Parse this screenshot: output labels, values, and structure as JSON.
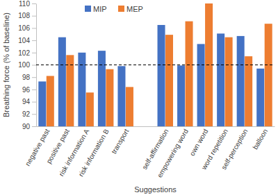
{
  "chart_data": {
    "type": "bar",
    "x_label": "Suggestions",
    "y_label": "Breathing force (% of baseline)",
    "categories": [
      "negative past",
      "positive past",
      "risk information A",
      "risk information B",
      "transport",
      null,
      "self-affirmation",
      "empowering word",
      "own word",
      "word repetition",
      "self-perception",
      "balloon"
    ],
    "series": [
      {
        "name": "MIP",
        "color": "#4472c4",
        "values": [
          97.3,
          104.5,
          102.0,
          102.3,
          99.8,
          null,
          106.5,
          99.9,
          103.4,
          105.1,
          104.7,
          99.4
        ]
      },
      {
        "name": "MEP",
        "color": "#ed7d31",
        "values": [
          98.2,
          101.6,
          95.5,
          99.3,
          96.4,
          null,
          104.9,
          107.1,
          110.0,
          104.5,
          101.4,
          106.7
        ]
      }
    ],
    "ylim": [
      90,
      110
    ],
    "yticks": [
      90,
      92,
      94,
      96,
      98,
      100,
      102,
      104,
      106,
      108,
      110
    ],
    "reference_line": 100,
    "grid": false,
    "legend": "top-left"
  }
}
